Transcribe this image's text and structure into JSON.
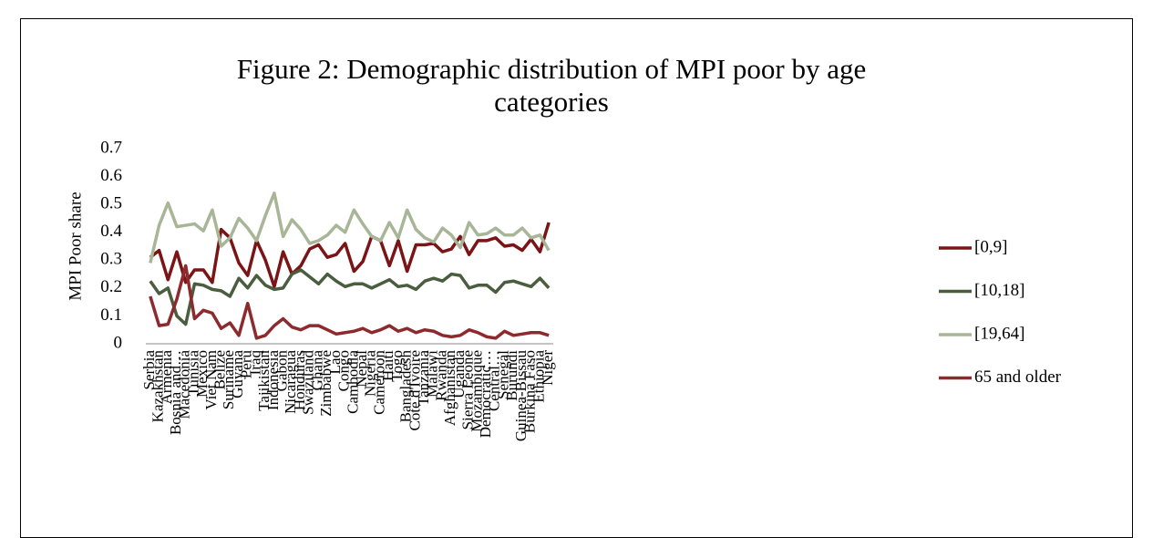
{
  "chart_data": {
    "type": "line",
    "title": "Figure 2: Demographic distribution of MPI poor by age categories",
    "y_label": "MPI Poor share",
    "categories": [
      "Serbia",
      "Kazakhstan",
      "Armenia",
      "Bosnia and…",
      "Macedonia",
      "Tunisia",
      "Mexico",
      "Viet Nam",
      "Belize",
      "Suriname",
      "Guyana",
      "Peru",
      "Iraq",
      "Tajikistan",
      "Indonesia",
      "Gabon",
      "Nicaragua",
      "Honduras",
      "Swaziland",
      "Ghana",
      "Zimbabwe",
      "Lao",
      "Congo",
      "Cambodia",
      "Nepal",
      "Nigeria",
      "Cameroon",
      "Haiti",
      "Togo",
      "Bangladesh",
      "Cote d'Ivoire",
      "Tanzania",
      "Malawi",
      "Rwanda",
      "Afghanistan",
      "Uganda",
      "Sierra Leone",
      "Mozambique",
      "Democratic…",
      "Central…",
      "Senegal",
      "Burundi",
      "Guinea-Bissau",
      "Burkina Faso",
      "Ethiopia",
      "Niger"
    ],
    "series": [
      {
        "name": "[0,9]",
        "color": "#7b1416",
        "values": [
          0.31,
          0.335,
          0.23,
          0.33,
          0.22,
          0.265,
          0.265,
          0.22,
          0.41,
          0.38,
          0.29,
          0.245,
          0.37,
          0.3,
          0.205,
          0.33,
          0.25,
          0.28,
          0.34,
          0.355,
          0.31,
          0.32,
          0.36,
          0.26,
          0.295,
          0.385,
          0.37,
          0.28,
          0.37,
          0.26,
          0.355,
          0.355,
          0.36,
          0.33,
          0.34,
          0.385,
          0.32,
          0.37,
          0.37,
          0.38,
          0.35,
          0.355,
          0.335,
          0.375,
          0.33,
          0.435
        ]
      },
      {
        "name": "[10,18]",
        "color": "#4a5e3f",
        "values": [
          0.225,
          0.18,
          0.2,
          0.1,
          0.07,
          0.215,
          0.21,
          0.195,
          0.19,
          0.17,
          0.235,
          0.2,
          0.245,
          0.21,
          0.195,
          0.2,
          0.25,
          0.265,
          0.24,
          0.215,
          0.25,
          0.225,
          0.205,
          0.215,
          0.215,
          0.2,
          0.215,
          0.23,
          0.205,
          0.21,
          0.195,
          0.225,
          0.235,
          0.225,
          0.25,
          0.245,
          0.2,
          0.21,
          0.21,
          0.185,
          0.22,
          0.225,
          0.215,
          0.205,
          0.235,
          0.2
        ]
      },
      {
        "name": "[19,64]",
        "color": "#a8b596",
        "values": [
          0.29,
          0.425,
          0.505,
          0.42,
          0.425,
          0.43,
          0.405,
          0.48,
          0.35,
          0.38,
          0.45,
          0.415,
          0.37,
          0.46,
          0.54,
          0.385,
          0.445,
          0.41,
          0.36,
          0.37,
          0.39,
          0.425,
          0.4,
          0.48,
          0.43,
          0.385,
          0.37,
          0.435,
          0.38,
          0.48,
          0.41,
          0.38,
          0.365,
          0.415,
          0.39,
          0.345,
          0.435,
          0.39,
          0.395,
          0.415,
          0.39,
          0.39,
          0.415,
          0.38,
          0.39,
          0.335
        ]
      },
      {
        "name": "65 and older",
        "color": "#8c2a2e",
        "values": [
          0.17,
          0.065,
          0.07,
          0.16,
          0.28,
          0.09,
          0.12,
          0.11,
          0.055,
          0.075,
          0.03,
          0.145,
          0.02,
          0.03,
          0.065,
          0.09,
          0.06,
          0.05,
          0.065,
          0.065,
          0.05,
          0.035,
          0.04,
          0.045,
          0.055,
          0.04,
          0.05,
          0.065,
          0.045,
          0.055,
          0.04,
          0.05,
          0.045,
          0.03,
          0.025,
          0.03,
          0.05,
          0.04,
          0.025,
          0.02,
          0.045,
          0.03,
          0.035,
          0.04,
          0.04,
          0.03
        ]
      }
    ],
    "ylim": [
      0,
      0.7
    ],
    "yticks": [
      0,
      0.1,
      0.2,
      0.3,
      0.4,
      0.5,
      0.6,
      0.7
    ],
    "grid": false,
    "legend": "right"
  }
}
